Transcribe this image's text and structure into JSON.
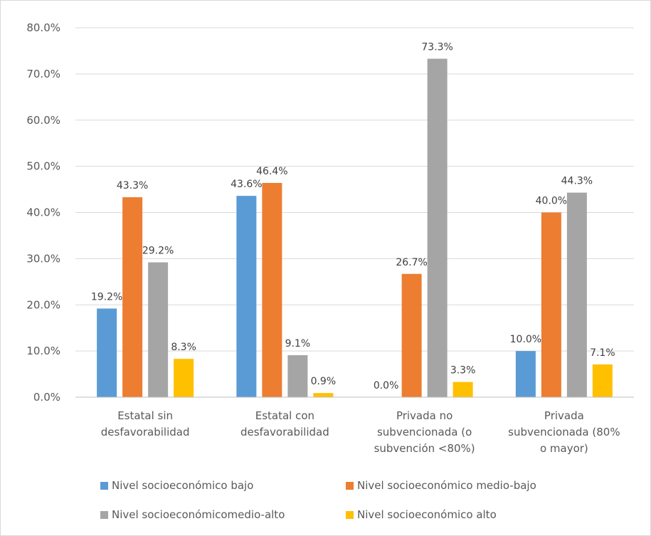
{
  "chart_data": {
    "type": "bar",
    "title": "",
    "xlabel": "",
    "ylabel": "",
    "ylim": [
      0,
      80
    ],
    "y_ticks": [
      "0.0%",
      "10.0%",
      "20.0%",
      "30.0%",
      "40.0%",
      "50.0%",
      "60.0%",
      "70.0%",
      "80.0%"
    ],
    "y_tick_values": [
      0,
      10,
      20,
      30,
      40,
      50,
      60,
      70,
      80
    ],
    "grid": true,
    "legend_position": "bottom",
    "categories": [
      [
        "Estatal sin",
        "desfavorabilidad"
      ],
      [
        "Estatal con",
        "desfavorabilidad"
      ],
      [
        "Privada no",
        "subvencionada (o",
        "subvención <80%)"
      ],
      [
        "Privada",
        "subvencionada (80%",
        "o mayor)"
      ]
    ],
    "series": [
      {
        "name": "Nivel socioeconómico bajo",
        "color": "#5b9bd5",
        "values": [
          19.2,
          43.6,
          0.0,
          10.0
        ],
        "labels": [
          "19.2%",
          "43.6%",
          "0.0%",
          "10.0%"
        ]
      },
      {
        "name": "Nivel socioeconómico medio-bajo",
        "color": "#ed7d31",
        "values": [
          43.3,
          46.4,
          26.7,
          40.0
        ],
        "labels": [
          "43.3%",
          "46.4%",
          "26.7%",
          "40.0%"
        ]
      },
      {
        "name": "Nivel socioeconómicomedio-alto",
        "color": "#a5a5a5",
        "values": [
          29.2,
          9.1,
          73.3,
          44.3
        ],
        "labels": [
          "29.2%",
          "9.1%",
          "73.3%",
          "44.3%"
        ]
      },
      {
        "name": "Nivel socioeconómico alto",
        "color": "#ffc000",
        "values": [
          8.3,
          0.9,
          3.3,
          7.1
        ],
        "labels": [
          "8.3%",
          "0.9%",
          "3.3%",
          "7.1%"
        ]
      }
    ],
    "gridline_color": "#d9d9d9",
    "axis_color": "#bfbfbf"
  }
}
